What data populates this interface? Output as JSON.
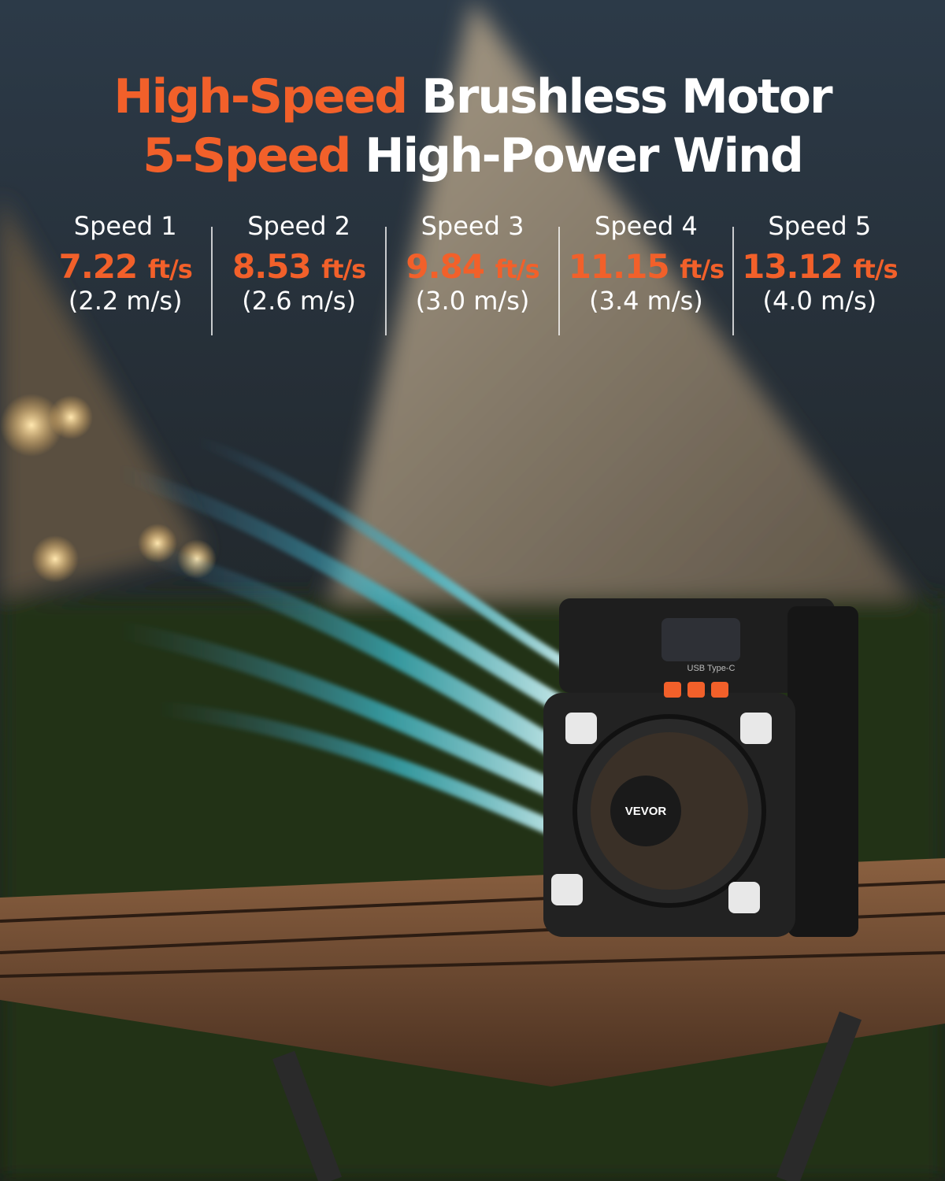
{
  "headline": {
    "lines": [
      {
        "accent": "High-Speed",
        "text": "Brushless Motor"
      },
      {
        "accent": "5-Speed",
        "text": "High-Power Wind"
      }
    ]
  },
  "speeds": [
    {
      "label": "Speed 1",
      "value": "7.22",
      "unit": "ft/s",
      "metric": "(2.2 m/s)"
    },
    {
      "label": "Speed 2",
      "value": "8.53",
      "unit": "ft/s",
      "metric": "(2.6 m/s)"
    },
    {
      "label": "Speed 3",
      "value": "9.84",
      "unit": "ft/s",
      "metric": "(3.0 m/s)"
    },
    {
      "label": "Speed 4",
      "value": "11.15",
      "unit": "ft/s",
      "metric": "(3.4 m/s)"
    },
    {
      "label": "Speed 5",
      "value": "13.12",
      "unit": "ft/s",
      "metric": "(4.0 m/s)"
    }
  ],
  "product": {
    "brand": "VEVOR",
    "port": "USB Type-C"
  }
}
